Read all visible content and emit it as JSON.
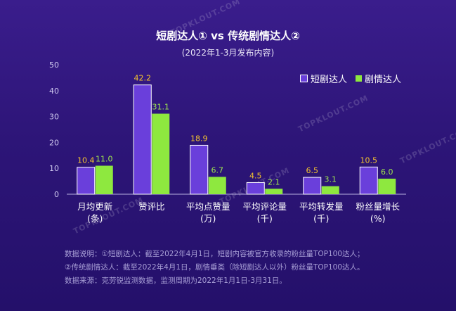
{
  "watermarks": [
    "TOPKLOUT.COM",
    "TOPKLOUT.COM",
    "TOPKLOUT.COM",
    "TOPKLOUT.COM",
    "TOPKLOUT.COM"
  ],
  "chart_data": {
    "type": "bar",
    "title": "短剧达人① vs 传统剧情达人②",
    "subtitle": "(2022年1-3月发布内容)",
    "categories": [
      [
        "月均更新",
        "(条)"
      ],
      [
        "赞评比",
        ""
      ],
      [
        "平均点赞量",
        "(万)"
      ],
      [
        "平均评论量",
        "(千)"
      ],
      [
        "平均转发量",
        "(千)"
      ],
      [
        "粉丝量增长",
        "(%)"
      ]
    ],
    "series": [
      {
        "name": "短剧达人",
        "color": "#6a3fdb",
        "label_color": "#f2c230",
        "values": [
          10.4,
          42.2,
          18.9,
          4.5,
          6.5,
          10.5
        ]
      },
      {
        "name": "剧情达人",
        "color": "#8ee83f",
        "label_color": "#9fe84f",
        "values": [
          11.0,
          31.1,
          6.7,
          2.1,
          3.1,
          6.0
        ]
      }
    ],
    "ylim": [
      0,
      50
    ],
    "yticks": [
      0,
      10,
      20,
      30,
      40,
      50
    ],
    "grid": false,
    "legend": "top-right"
  },
  "notes": [
    "数据说明：①短剧达人：截至2022年4月1日，短剧内容被官方收录的粉丝量TOP100达人；",
    "②传统剧情达人：截至2022年4月1日，剧情垂类（除短剧达人以外）粉丝量TOP100达人。",
    "数据来源：克劳锐监测数据，监测周期为2022年1月1日-3月31日。"
  ]
}
